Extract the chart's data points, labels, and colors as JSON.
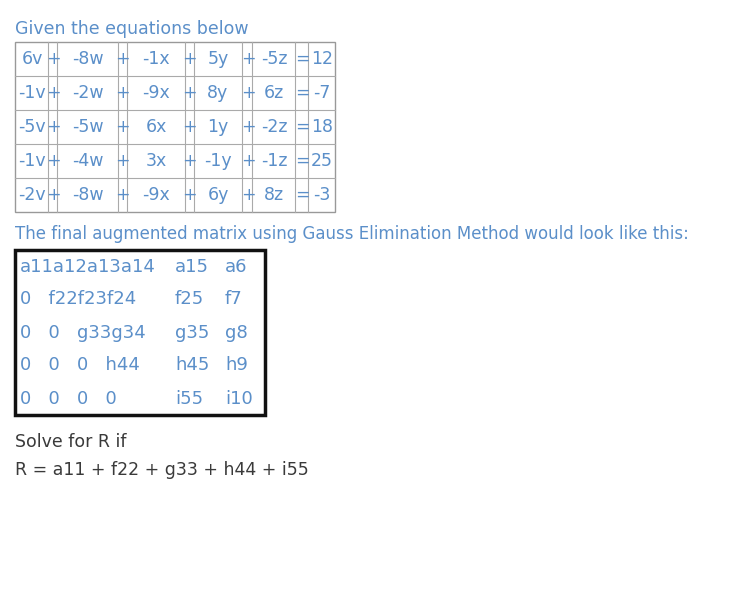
{
  "bg_color": "#ffffff",
  "text_color": "#5b8fc9",
  "dark_text": "#3a3a3a",
  "heading1": "Given the equations below",
  "heading2": "The final augmented matrix using Gauss Elimination Method would look like this:",
  "solve_label": "Solve for R if",
  "formula": "R = a11 + f22 + g33 + h44 + i55",
  "eq_rows": [
    [
      "6v",
      "+",
      "-8w",
      "+",
      "-1x",
      "+",
      "5y",
      "+",
      "-5z",
      "=",
      "12"
    ],
    [
      "-1v",
      "+",
      "-2w",
      "+",
      "-9x",
      "+",
      "8y",
      "+",
      "6z",
      "=",
      "-7"
    ],
    [
      "-5v",
      "+",
      "-5w",
      "+",
      "6x",
      "+",
      "1y",
      "+",
      "-2z",
      "=",
      "18"
    ],
    [
      "-1v",
      "+",
      "-4w",
      "+",
      "3x",
      "+",
      "-1y",
      "+",
      "-1z",
      "=",
      "25"
    ],
    [
      "-2v",
      "+",
      "-8w",
      "+",
      "-9x",
      "+",
      "6y",
      "+",
      "8z",
      "=",
      "-3"
    ]
  ],
  "mat_rows": [
    [
      "a11a12a13a14",
      "a15",
      "a6"
    ],
    [
      "0   f22f23f24",
      "f25",
      "f7"
    ],
    [
      "0   0   g33g34",
      "g35",
      "g8"
    ],
    [
      "0   0   0   h44",
      "h45",
      "h9"
    ],
    [
      "0   0   0   0",
      "i55",
      "i10"
    ]
  ],
  "fig_width": 7.36,
  "fig_height": 6.0,
  "dpi": 100
}
